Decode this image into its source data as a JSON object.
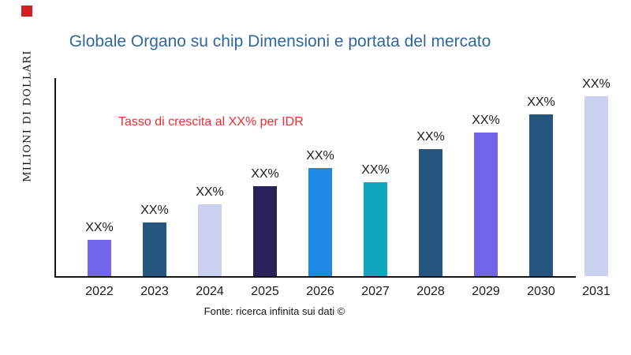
{
  "logo": {
    "color": "#cf2027"
  },
  "title": {
    "text": "Globale Organo su chip Dimensioni e portata del mercato",
    "color": "#336799"
  },
  "annotation": {
    "text": "Tasso di crescita al XX% per IDR",
    "color": "#ed2f33"
  },
  "source": {
    "text": "Fonte: ricerca infinita sui dati ©"
  },
  "chart_data": {
    "type": "bar",
    "title": "Globale Organo su chip Dimensioni e portata del mercato",
    "xlabel": "",
    "ylabel": "MILIONI DI DOLLARI",
    "categories": [
      "2022",
      "2023",
      "2024",
      "2025",
      "2026",
      "2027",
      "2028",
      "2029",
      "2030",
      "2031"
    ],
    "values": [
      46,
      68,
      91,
      114,
      137,
      119,
      161,
      182,
      205,
      228
    ],
    "values_unit": "relative-height-px (axis shows no numeric scale)",
    "bar_labels": [
      "XX%",
      "XX%",
      "XX%",
      "XX%",
      "XX%",
      "XX%",
      "XX%",
      "XX%",
      "XX%",
      "XX%"
    ],
    "bar_colors": [
      "#7365e9",
      "#255680",
      "#cbd0f0",
      "#282358",
      "#1e88e5",
      "#0fa6be",
      "#255680",
      "#7365e9",
      "#255680",
      "#cbd0f0"
    ],
    "annotation": "Tasso di crescita al XX% per IDR",
    "source": "Fonte: ricerca infinita sui dati ©",
    "grid": false,
    "legend": false,
    "axis_color": "#141414"
  }
}
